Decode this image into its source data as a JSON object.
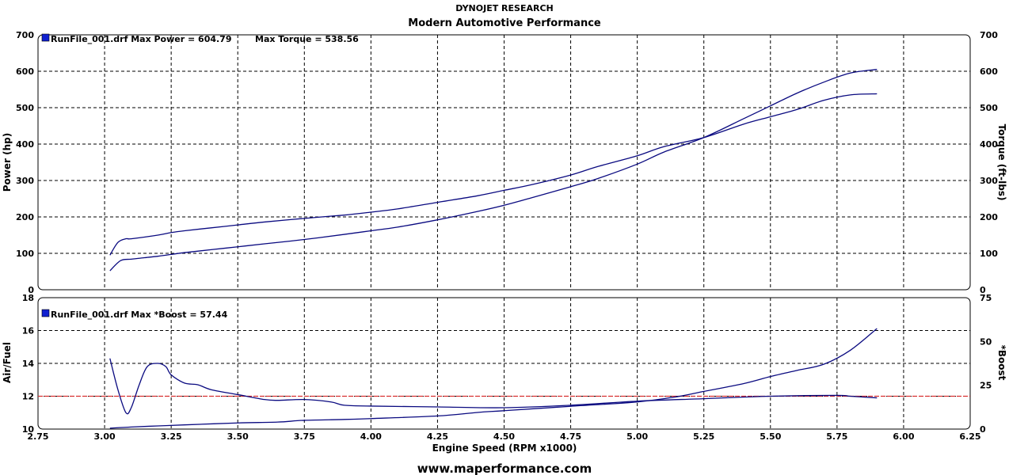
{
  "header": {
    "title": "DYNOJET RESEARCH",
    "subtitle": "Modern Automotive Performance"
  },
  "footer": {
    "website": "www.maperformance.com"
  },
  "colors": {
    "series": "#0a0a80",
    "reference_line": "#d83030",
    "grid": "#000000",
    "legend_box": "#1020d0"
  },
  "chart_data": [
    {
      "type": "line",
      "legend": {
        "label": "RunFile_001.drf Max Power = 604.79",
        "extra": "Max Torque = 538.56",
        "placement": "top-left"
      },
      "xlabel": "Engine Speed (RPM x1000)",
      "xlim": [
        2.75,
        6.25
      ],
      "xticks": [
        "2.75",
        "3.00",
        "3.25",
        "3.50",
        "3.75",
        "4.00",
        "4.25",
        "4.50",
        "4.75",
        "5.00",
        "5.25",
        "5.50",
        "5.75",
        "6.00",
        "6.25"
      ],
      "ylabel": "Power (hp)",
      "ylim": [
        0,
        700
      ],
      "yticks": [
        "0",
        "100",
        "200",
        "300",
        "400",
        "500",
        "600",
        "700"
      ],
      "y2label": "Torque (ft-lbs)",
      "y2lim": [
        0,
        700
      ],
      "y2ticks": [
        "0",
        "100",
        "200",
        "300",
        "400",
        "500",
        "600",
        "700"
      ],
      "grid": true,
      "series": [
        {
          "axis": "left",
          "x": [
            3.02,
            3.06,
            3.1,
            3.15,
            3.2,
            3.25,
            3.3,
            3.4,
            3.5,
            3.6,
            3.75,
            3.9,
            4.0,
            4.1,
            4.25,
            4.4,
            4.5,
            4.6,
            4.75,
            4.85,
            5.0,
            5.1,
            5.25,
            5.4,
            5.5,
            5.6,
            5.7,
            5.8,
            5.9
          ],
          "values": [
            52,
            80,
            84,
            88,
            92,
            97,
            102,
            110,
            118,
            126,
            138,
            152,
            162,
            172,
            192,
            215,
            232,
            252,
            283,
            305,
            345,
            378,
            418,
            470,
            505,
            540,
            570,
            595,
            605
          ]
        },
        {
          "axis": "right",
          "x": [
            3.02,
            3.05,
            3.08,
            3.1,
            3.2,
            3.25,
            3.3,
            3.4,
            3.5,
            3.6,
            3.75,
            3.9,
            4.0,
            4.1,
            4.25,
            4.4,
            4.5,
            4.6,
            4.75,
            4.85,
            5.0,
            5.1,
            5.25,
            5.4,
            5.5,
            5.6,
            5.7,
            5.8,
            5.9
          ],
          "values": [
            95,
            130,
            140,
            140,
            150,
            157,
            162,
            170,
            178,
            186,
            196,
            205,
            213,
            222,
            240,
            258,
            273,
            288,
            315,
            338,
            368,
            393,
            418,
            455,
            475,
            495,
            520,
            535,
            538
          ]
        }
      ]
    },
    {
      "type": "line",
      "legend": {
        "label": "RunFile_001.drf Max *Boost = 57.44",
        "placement": "top-left"
      },
      "xlabel": "Engine Speed (RPM x1000)",
      "xlim": [
        2.75,
        6.25
      ],
      "ylabel": "Air/Fuel",
      "ylim": [
        10,
        18
      ],
      "yticks": [
        "10",
        "12",
        "14",
        "16",
        "18"
      ],
      "y2label": "*Boost",
      "y2lim": [
        0,
        75
      ],
      "y2ticks": [
        "0",
        "25",
        "50",
        "75"
      ],
      "grid": true,
      "reference_line": {
        "axis": "left",
        "value": 12.0
      },
      "series": [
        {
          "axis": "left",
          "x": [
            3.02,
            3.05,
            3.08,
            3.1,
            3.13,
            3.16,
            3.2,
            3.23,
            3.25,
            3.3,
            3.35,
            3.4,
            3.5,
            3.6,
            3.65,
            3.75,
            3.85,
            3.9,
            4.0,
            4.25,
            4.5,
            4.75,
            5.0,
            5.25,
            5.5,
            5.75,
            5.8,
            5.9
          ],
          "values": [
            14.3,
            12.4,
            11.0,
            11.3,
            12.7,
            13.8,
            14.0,
            13.8,
            13.3,
            12.8,
            12.7,
            12.4,
            12.1,
            11.8,
            11.75,
            11.8,
            11.65,
            11.45,
            11.4,
            11.35,
            11.3,
            11.45,
            11.7,
            11.85,
            12.0,
            12.05,
            12.0,
            11.9
          ]
        },
        {
          "axis": "right",
          "x": [
            3.02,
            3.1,
            3.2,
            3.3,
            3.5,
            3.65,
            3.75,
            3.9,
            4.0,
            4.25,
            4.4,
            4.5,
            4.75,
            5.0,
            5.15,
            5.25,
            5.4,
            5.5,
            5.6,
            5.7,
            5.8,
            5.9
          ],
          "values": [
            0.5,
            1.2,
            1.8,
            2.4,
            3.5,
            4.0,
            5.0,
            5.5,
            6.0,
            7.5,
            9.5,
            10.5,
            13.0,
            15.5,
            18.5,
            21.5,
            26.0,
            30.0,
            33.5,
            37.0,
            45.0,
            57.4
          ]
        }
      ]
    }
  ]
}
